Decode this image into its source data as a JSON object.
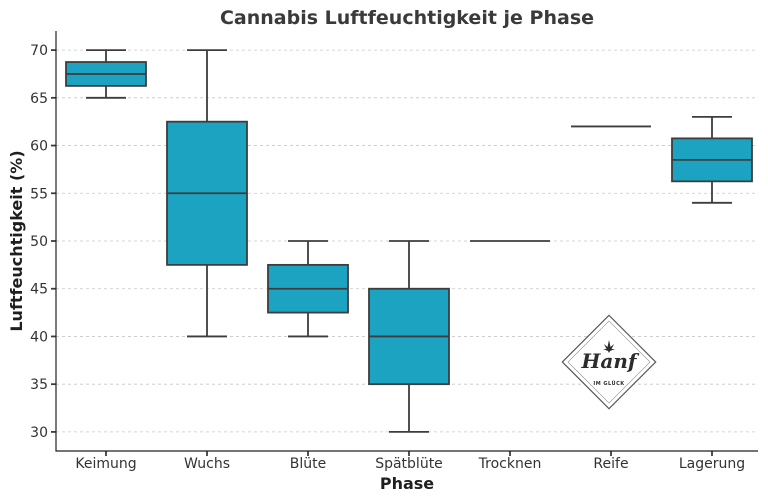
{
  "chart_data": {
    "type": "box",
    "title": "Cannabis Luftfeuchtigkeit je Phase",
    "xlabel": "Phase",
    "ylabel": "Luftfeuchtigkeit (%)",
    "ylim": [
      28,
      72
    ],
    "yticks": [
      30,
      35,
      40,
      45,
      50,
      55,
      60,
      65,
      70
    ],
    "grid": true,
    "box_color": "#1ca3c2",
    "categories": [
      "Keimung",
      "Wuchs",
      "Blüte",
      "Spätblüte",
      "Trocknen",
      "Reife",
      "Lagerung"
    ],
    "boxes": [
      {
        "min": 65,
        "q1": 66.25,
        "median": 67.5,
        "q3": 68.75,
        "max": 70
      },
      {
        "min": 40,
        "q1": 47.5,
        "median": 55,
        "q3": 62.5,
        "max": 70
      },
      {
        "min": 40,
        "q1": 42.5,
        "median": 45,
        "q3": 47.5,
        "max": 50
      },
      {
        "min": 30,
        "q1": 35,
        "median": 40,
        "q3": 45,
        "max": 50
      },
      {
        "min": 50,
        "q1": 50,
        "median": 50,
        "q3": 50,
        "max": 50
      },
      {
        "min": 62,
        "q1": 62,
        "median": 62,
        "q3": 62,
        "max": 62
      },
      {
        "min": 54,
        "q1": 56.25,
        "median": 58.5,
        "q3": 60.75,
        "max": 63
      }
    ]
  },
  "logo": {
    "name": "Hanf",
    "tagline": "IM GLÜCK"
  }
}
